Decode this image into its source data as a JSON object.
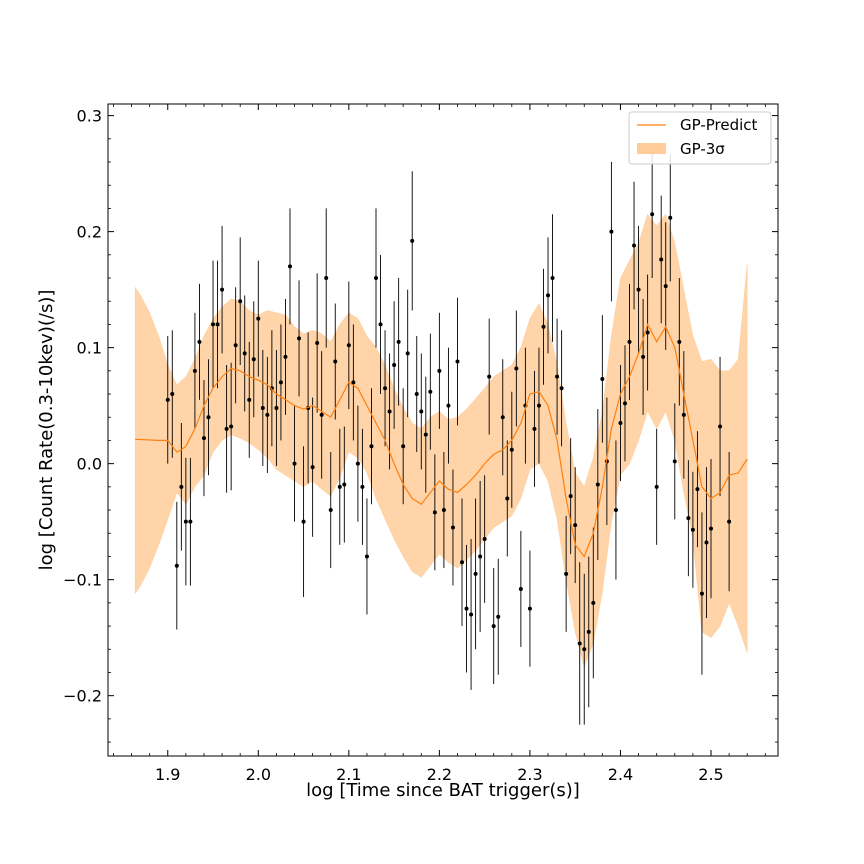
{
  "chart_data": {
    "type": "scatter",
    "title": "",
    "xlabel": "log [Time since BAT trigger(s)]",
    "ylabel": "log [Count Rate(0.3-10kev)(/s)]",
    "xlim": [
      1.834,
      2.574
    ],
    "ylim": [
      -0.252,
      0.31
    ],
    "xticks": [
      1.9,
      2.0,
      2.1,
      2.2,
      2.3,
      2.4,
      2.5
    ],
    "xtick_labels": [
      "1.9",
      "2.0",
      "2.1",
      "2.2",
      "2.3",
      "2.4",
      "2.5"
    ],
    "yticks": [
      -0.2,
      -0.1,
      0.0,
      0.1,
      0.2,
      0.3
    ],
    "ytick_labels": [
      "−0.2",
      "−0.1",
      "0.0",
      "0.1",
      "0.2",
      "0.3"
    ],
    "legend": {
      "position": "top-right",
      "entries": [
        "GP-Predict",
        "GP-3σ"
      ]
    },
    "colors": {
      "predict": "#ff7f0e",
      "band": "#ffcc99",
      "points": "#000000"
    },
    "series": [
      {
        "name": "GP-Predict",
        "x": [
          1.864,
          1.89,
          1.9,
          1.905,
          1.91,
          1.915,
          1.92,
          1.93,
          1.94,
          1.95,
          1.96,
          1.97,
          1.98,
          1.99,
          2.0,
          2.01,
          2.02,
          2.03,
          2.04,
          2.05,
          2.06,
          2.07,
          2.08,
          2.09,
          2.1,
          2.11,
          2.12,
          2.13,
          2.14,
          2.15,
          2.16,
          2.17,
          2.18,
          2.19,
          2.2,
          2.21,
          2.22,
          2.23,
          2.24,
          2.25,
          2.26,
          2.27,
          2.28,
          2.29,
          2.3,
          2.31,
          2.32,
          2.33,
          2.34,
          2.35,
          2.36,
          2.37,
          2.38,
          2.39,
          2.4,
          2.41,
          2.42,
          2.43,
          2.44,
          2.45,
          2.46,
          2.47,
          2.48,
          2.49,
          2.5,
          2.51,
          2.52,
          2.53,
          2.54
        ],
        "y": [
          0.021,
          0.02,
          0.02,
          0.015,
          0.01,
          0.012,
          0.015,
          0.03,
          0.05,
          0.065,
          0.075,
          0.082,
          0.08,
          0.075,
          0.072,
          0.068,
          0.06,
          0.055,
          0.05,
          0.047,
          0.05,
          0.045,
          0.04,
          0.055,
          0.07,
          0.065,
          0.05,
          0.035,
          0.02,
          0.0,
          -0.018,
          -0.03,
          -0.035,
          -0.025,
          -0.015,
          -0.022,
          -0.025,
          -0.018,
          -0.01,
          0.0,
          0.008,
          0.012,
          0.02,
          0.035,
          0.06,
          0.062,
          0.05,
          0.02,
          -0.03,
          -0.07,
          -0.08,
          -0.06,
          -0.02,
          0.03,
          0.06,
          0.075,
          0.095,
          0.12,
          0.105,
          0.118,
          0.1,
          0.06,
          0.02,
          -0.02,
          -0.03,
          -0.025,
          -0.01,
          -0.008,
          0.004
        ]
      },
      {
        "name": "GP-3σ",
        "x": [
          1.864,
          1.87,
          1.88,
          1.89,
          1.9,
          1.91,
          1.92,
          1.93,
          1.94,
          1.95,
          1.96,
          1.97,
          1.98,
          1.99,
          2.0,
          2.01,
          2.02,
          2.03,
          2.04,
          2.05,
          2.06,
          2.07,
          2.08,
          2.09,
          2.1,
          2.11,
          2.12,
          2.13,
          2.14,
          2.15,
          2.16,
          2.17,
          2.18,
          2.19,
          2.2,
          2.21,
          2.22,
          2.23,
          2.24,
          2.25,
          2.26,
          2.27,
          2.28,
          2.29,
          2.3,
          2.31,
          2.32,
          2.33,
          2.34,
          2.35,
          2.36,
          2.37,
          2.38,
          2.39,
          2.4,
          2.41,
          2.42,
          2.43,
          2.44,
          2.45,
          2.46,
          2.47,
          2.48,
          2.49,
          2.5,
          2.51,
          2.52,
          2.53,
          2.54
        ],
        "upper": [
          0.152,
          0.145,
          0.13,
          0.11,
          0.085,
          0.068,
          0.075,
          0.09,
          0.11,
          0.125,
          0.135,
          0.142,
          0.14,
          0.132,
          0.128,
          0.132,
          0.13,
          0.128,
          0.118,
          0.112,
          0.115,
          0.112,
          0.105,
          0.12,
          0.13,
          0.125,
          0.11,
          0.1,
          0.085,
          0.065,
          0.048,
          0.035,
          0.03,
          0.04,
          0.045,
          0.038,
          0.04,
          0.047,
          0.056,
          0.065,
          0.075,
          0.08,
          0.085,
          0.1,
          0.125,
          0.138,
          0.12,
          0.085,
          0.035,
          -0.008,
          -0.02,
          0.005,
          0.045,
          0.11,
          0.16,
          0.175,
          0.19,
          0.215,
          0.205,
          0.215,
          0.19,
          0.15,
          0.11,
          0.088,
          0.09,
          0.08,
          0.08,
          0.09,
          0.172
        ],
        "lower": [
          -0.112,
          -0.105,
          -0.09,
          -0.07,
          -0.048,
          -0.025,
          -0.035,
          -0.02,
          -0.01,
          0.01,
          0.02,
          0.025,
          0.022,
          0.018,
          0.012,
          0.005,
          -0.005,
          -0.01,
          -0.015,
          -0.02,
          -0.015,
          -0.022,
          -0.028,
          -0.012,
          0.01,
          0.005,
          -0.008,
          -0.03,
          -0.048,
          -0.065,
          -0.08,
          -0.093,
          -0.098,
          -0.088,
          -0.078,
          -0.085,
          -0.09,
          -0.083,
          -0.075,
          -0.065,
          -0.055,
          -0.05,
          -0.045,
          -0.03,
          -0.005,
          0.0,
          -0.015,
          -0.048,
          -0.1,
          -0.145,
          -0.175,
          -0.155,
          -0.11,
          -0.05,
          -0.01,
          0.0,
          0.02,
          0.045,
          0.03,
          0.045,
          0.02,
          -0.025,
          -0.065,
          -0.145,
          -0.15,
          -0.14,
          -0.12,
          -0.14,
          -0.163
        ]
      },
      {
        "name": "",
        "points": [
          [
            1.9,
            0.055,
            0.055
          ],
          [
            1.905,
            0.06,
            0.055
          ],
          [
            1.91,
            -0.088,
            0.055
          ],
          [
            1.915,
            -0.02,
            0.055
          ],
          [
            1.92,
            -0.05,
            0.055
          ],
          [
            1.925,
            -0.05,
            0.055
          ],
          [
            1.93,
            0.08,
            0.05
          ],
          [
            1.935,
            0.105,
            0.05
          ],
          [
            1.94,
            0.022,
            0.05
          ],
          [
            1.945,
            0.04,
            0.05
          ],
          [
            1.95,
            0.12,
            0.055
          ],
          [
            1.955,
            0.12,
            0.055
          ],
          [
            1.96,
            0.15,
            0.055
          ],
          [
            1.965,
            0.03,
            0.055
          ],
          [
            1.97,
            0.032,
            0.055
          ],
          [
            1.975,
            0.102,
            0.05
          ],
          [
            1.98,
            0.14,
            0.055
          ],
          [
            1.985,
            0.095,
            0.05
          ],
          [
            1.99,
            0.055,
            0.05
          ],
          [
            1.995,
            0.09,
            0.05
          ],
          [
            2.0,
            0.125,
            0.05
          ],
          [
            2.005,
            0.048,
            0.05
          ],
          [
            2.01,
            0.042,
            0.05
          ],
          [
            2.015,
            0.065,
            0.05
          ],
          [
            2.02,
            0.048,
            0.05
          ],
          [
            2.025,
            0.07,
            0.05
          ],
          [
            2.03,
            0.092,
            0.05
          ],
          [
            2.035,
            0.17,
            0.05
          ],
          [
            2.04,
            0.0,
            0.05
          ],
          [
            2.045,
            0.108,
            0.05
          ],
          [
            2.05,
            -0.05,
            0.065
          ],
          [
            2.055,
            0.048,
            0.065
          ],
          [
            2.06,
            -0.003,
            0.06
          ],
          [
            2.065,
            0.104,
            0.06
          ],
          [
            2.07,
            0.042,
            0.055
          ],
          [
            2.075,
            0.16,
            0.06
          ],
          [
            2.08,
            -0.04,
            0.05
          ],
          [
            2.085,
            0.088,
            0.05
          ],
          [
            2.09,
            -0.02,
            0.05
          ],
          [
            2.095,
            -0.018,
            0.05
          ],
          [
            2.1,
            0.102,
            0.055
          ],
          [
            2.105,
            0.07,
            0.05
          ],
          [
            2.11,
            0.0,
            0.05
          ],
          [
            2.115,
            -0.02,
            0.05
          ],
          [
            2.12,
            -0.08,
            0.05
          ],
          [
            2.125,
            0.015,
            0.05
          ],
          [
            2.13,
            0.16,
            0.06
          ],
          [
            2.135,
            0.12,
            0.06
          ],
          [
            2.14,
            0.065,
            0.05
          ],
          [
            2.145,
            0.045,
            0.05
          ],
          [
            2.15,
            0.085,
            0.055
          ],
          [
            2.155,
            0.105,
            0.055
          ],
          [
            2.16,
            0.015,
            0.05
          ],
          [
            2.165,
            0.095,
            0.055
          ],
          [
            2.17,
            0.192,
            0.06
          ],
          [
            2.175,
            0.06,
            0.05
          ],
          [
            2.18,
            0.045,
            0.05
          ],
          [
            2.185,
            0.025,
            0.05
          ],
          [
            2.19,
            0.062,
            0.05
          ],
          [
            2.195,
            -0.042,
            0.05
          ],
          [
            2.2,
            0.08,
            0.05
          ],
          [
            2.205,
            -0.04,
            0.05
          ],
          [
            2.21,
            0.05,
            0.05
          ],
          [
            2.215,
            -0.055,
            0.05
          ],
          [
            2.22,
            0.088,
            0.055
          ],
          [
            2.225,
            -0.085,
            0.055
          ],
          [
            2.23,
            -0.125,
            0.055
          ],
          [
            2.235,
            -0.13,
            0.065
          ],
          [
            2.24,
            -0.095,
            0.065
          ],
          [
            2.245,
            -0.08,
            0.065
          ],
          [
            2.25,
            -0.065,
            0.055
          ],
          [
            2.255,
            0.075,
            0.05
          ],
          [
            2.26,
            -0.14,
            0.05
          ],
          [
            2.265,
            -0.132,
            0.05
          ],
          [
            2.27,
            0.04,
            0.05
          ],
          [
            2.275,
            -0.03,
            0.05
          ],
          [
            2.28,
            0.012,
            0.05
          ],
          [
            2.285,
            0.082,
            0.05
          ],
          [
            2.29,
            -0.108,
            0.05
          ],
          [
            2.295,
            0.05,
            0.05
          ],
          [
            2.3,
            -0.125,
            0.05
          ],
          [
            2.305,
            0.03,
            0.05
          ],
          [
            2.31,
            0.05,
            0.05
          ],
          [
            2.315,
            0.118,
            0.05
          ],
          [
            2.32,
            0.145,
            0.05
          ],
          [
            2.325,
            0.16,
            0.055
          ],
          [
            2.33,
            0.075,
            0.05
          ],
          [
            2.335,
            0.065,
            0.05
          ],
          [
            2.34,
            -0.095,
            0.05
          ],
          [
            2.345,
            -0.028,
            0.05
          ],
          [
            2.35,
            -0.053,
            0.05
          ],
          [
            2.355,
            -0.155,
            0.07
          ],
          [
            2.36,
            -0.16,
            0.065
          ],
          [
            2.365,
            -0.145,
            0.065
          ],
          [
            2.37,
            -0.12,
            0.065
          ],
          [
            2.375,
            -0.018,
            0.065
          ],
          [
            2.38,
            0.073,
            0.055
          ],
          [
            2.385,
            0.002,
            0.055
          ],
          [
            2.39,
            0.2,
            0.06
          ],
          [
            2.395,
            -0.04,
            0.06
          ],
          [
            2.4,
            0.035,
            0.05
          ],
          [
            2.405,
            0.052,
            0.05
          ],
          [
            2.41,
            0.105,
            0.05
          ],
          [
            2.415,
            0.188,
            0.055
          ],
          [
            2.42,
            0.15,
            0.055
          ],
          [
            2.425,
            0.092,
            0.05
          ],
          [
            2.43,
            0.113,
            0.05
          ],
          [
            2.435,
            0.215,
            0.055
          ],
          [
            2.44,
            -0.02,
            0.05
          ],
          [
            2.445,
            0.176,
            0.055
          ],
          [
            2.45,
            0.153,
            0.055
          ],
          [
            2.455,
            0.212,
            0.055
          ],
          [
            2.46,
            0.002,
            0.05
          ],
          [
            2.465,
            0.105,
            0.055
          ],
          [
            2.47,
            0.042,
            0.055
          ],
          [
            2.475,
            -0.047,
            0.05
          ],
          [
            2.48,
            -0.057,
            0.05
          ],
          [
            2.485,
            -0.022,
            0.05
          ],
          [
            2.49,
            -0.112,
            0.07
          ],
          [
            2.495,
            -0.068,
            0.065
          ],
          [
            2.5,
            -0.056,
            0.06
          ],
          [
            2.51,
            0.032,
            0.06
          ],
          [
            2.52,
            -0.05,
            0.06
          ]
        ]
      }
    ]
  }
}
